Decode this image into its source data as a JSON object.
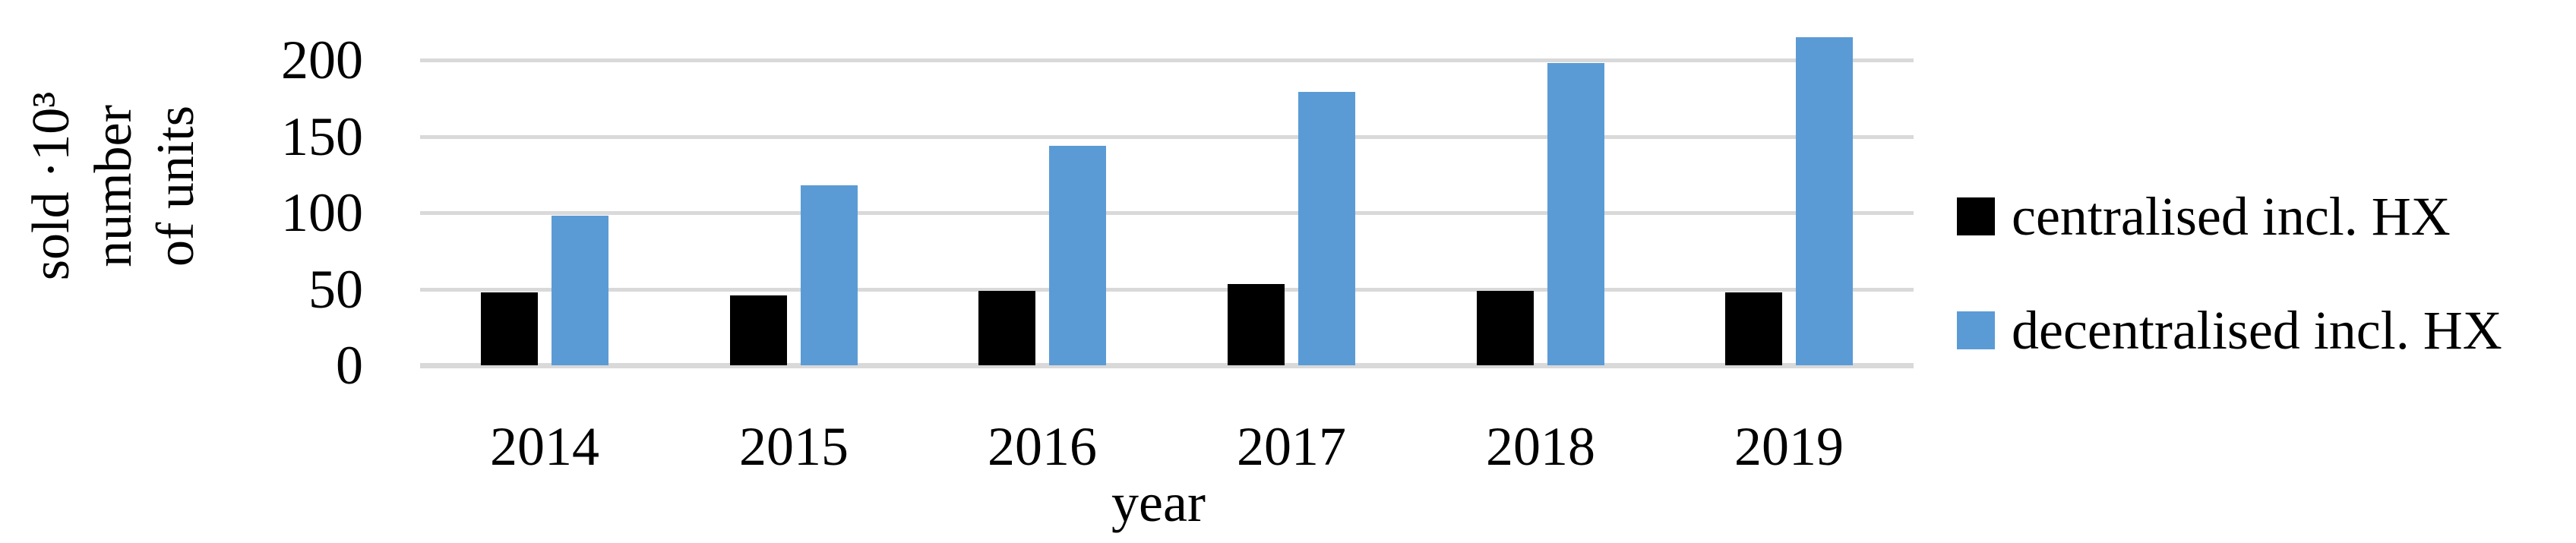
{
  "chart_data": {
    "type": "bar",
    "categories": [
      "2014",
      "2015",
      "2016",
      "2017",
      "2018",
      "2019"
    ],
    "series": [
      {
        "name": "centralised incl. HX",
        "color": "#000000",
        "values": [
          48,
          46,
          49,
          53,
          49,
          48
        ]
      },
      {
        "name": "decentralised incl. HX",
        "color": "#5B9BD5",
        "values": [
          98,
          118,
          144,
          179,
          198,
          215
        ]
      }
    ],
    "title": "",
    "xlabel": "year",
    "ylabel": "sold ·10³ number of units",
    "ylabel_lines": [
      "sold ·10³",
      "number",
      "of units"
    ],
    "yticks": [
      0,
      50,
      100,
      150,
      200
    ],
    "ylim": [
      0,
      220
    ],
    "grid": true,
    "legend_position": "right",
    "gridline_color": "#D9D9D9",
    "background_color": "#FFFFFF"
  }
}
